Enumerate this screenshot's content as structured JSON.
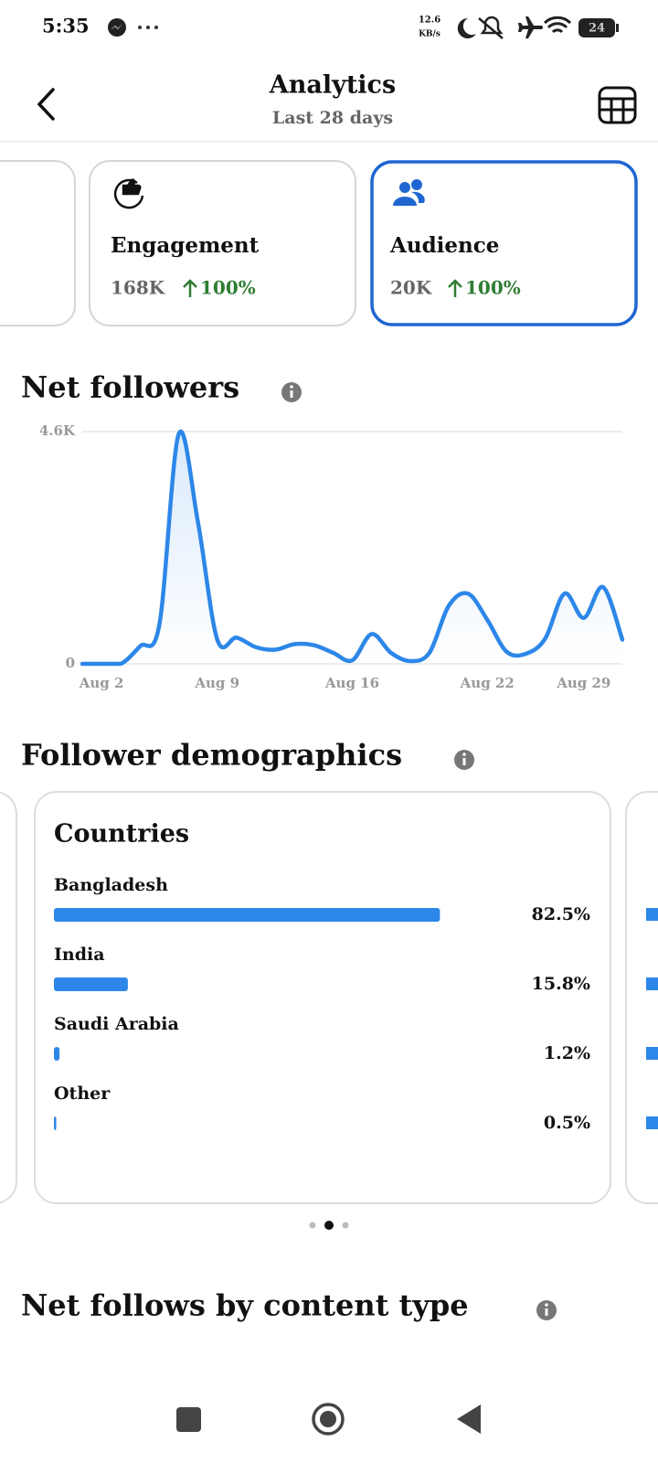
{
  "status_bar": {
    "time": "5:35",
    "network_speed": "12.6",
    "network_unit": "KB/s",
    "battery": "24"
  },
  "header": {
    "title": "Analytics",
    "subtitle": "Last 28 days"
  },
  "metric_cards": [
    {
      "label": "Engagement",
      "value": "168K",
      "change": "100%"
    },
    {
      "label": "Audience",
      "value": "20K",
      "change": "100%"
    }
  ],
  "chart_data": {
    "type": "line",
    "title": "Net followers",
    "categories": [
      null,
      "Aug 2",
      null,
      null,
      null,
      null,
      null,
      "Aug 9",
      null,
      null,
      null,
      null,
      null,
      null,
      "Aug 16",
      null,
      null,
      null,
      null,
      null,
      null,
      "Aug 22",
      null,
      null,
      null,
      null,
      "Aug 29",
      null,
      null
    ],
    "series": [
      {
        "color": "#2d87e8",
        "values": [
          0,
          0,
          0,
          350,
          780,
          4550,
          2800,
          480,
          520,
          330,
          280,
          390,
          370,
          220,
          70,
          590,
          220,
          55,
          220,
          1150,
          1390,
          870,
          240,
          200,
          500,
          1390,
          910,
          1520,
          480
        ]
      }
    ],
    "ylim": [
      0,
      4600
    ],
    "yticks": [
      0,
      {
        "value": 4600,
        "label": "4.6K"
      }
    ],
    "grid": true
  },
  "demographics": {
    "title": "Follower demographics",
    "card_title": "Countries",
    "rows": [
      {
        "name": "Bangladesh",
        "value": 82.5,
        "value_label": "82.5%"
      },
      {
        "name": "India",
        "value": 15.8,
        "value_label": "15.8%"
      },
      {
        "name": "Saudi Arabia",
        "value": 1.2,
        "value_label": "1.2%"
      },
      {
        "name": "Other",
        "value": 0.5,
        "value_label": "0.5%"
      }
    ]
  },
  "section": {
    "title": "Net follows by content type"
  }
}
